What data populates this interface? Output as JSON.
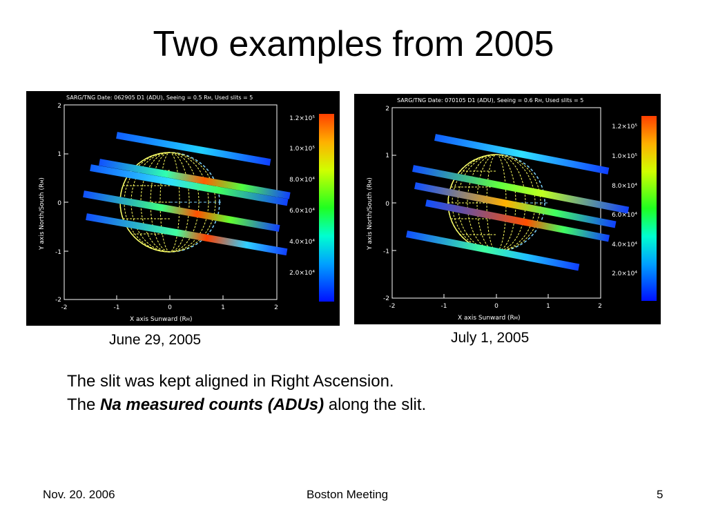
{
  "slide": {
    "title": "Two examples from 2005",
    "line1": "The slit was kept aligned in Right Ascension.",
    "line2_prefix": "The ",
    "line2_emphasis": "Na measured counts (ADUs)",
    "line2_suffix": " along the slit.",
    "footer_left": "Nov. 20. 2006",
    "footer_center": "Boston Meeting",
    "footer_right": "5"
  },
  "plots": [
    {
      "caption": "June 29, 2005",
      "header": "SARG/TNG Date: 062905 D1 (ADU), Seeing = 0.5 R",
      "header_tail": ", Used slits =  5",
      "xlabel": "X axis Sunward (R",
      "ylabel": "Y axis North/South (R",
      "ticks": [
        "-2",
        "-1",
        "0",
        "1",
        "2"
      ],
      "colorbar_labels": [
        "1.2×10⁵",
        "1.0×10⁵",
        "8.0×10⁴",
        "6.0×10⁴",
        "4.0×10⁴",
        "2.0×10⁴"
      ]
    },
    {
      "caption": "July 1, 2005",
      "header": "SARG/TNG Date: 070105 D1 (ADU), Seeing = 0.6 R",
      "header_tail": ", Used slits =  5",
      "xlabel": "X axis Sunward (R",
      "ylabel": "Y axis North/South (R",
      "ticks": [
        "-2",
        "-1",
        "0",
        "1",
        "2"
      ],
      "colorbar_labels": [
        "1.2×10⁵",
        "1.0×10⁵",
        "8.0×10⁴",
        "6.0×10⁴",
        "4.0×10⁴",
        "2.0×10⁴"
      ]
    }
  ]
}
